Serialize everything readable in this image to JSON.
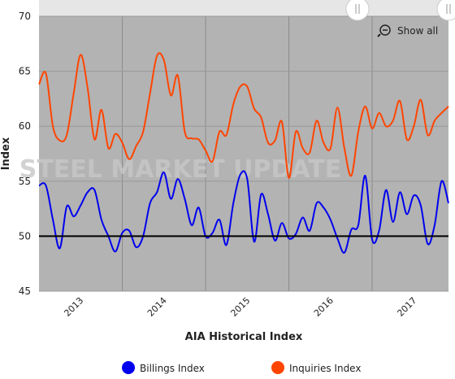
{
  "chart_data": {
    "type": "line",
    "x_axis_title": "AIA Historical Index",
    "y_axis_title": "Index",
    "watermark": "STEEL MARKET UPDATE",
    "reset_button": "Show all",
    "categories": [
      null,
      null,
      null,
      null,
      null,
      null,
      "2013",
      null,
      null,
      null,
      null,
      null,
      null,
      null,
      null,
      null,
      null,
      null,
      "2014",
      null,
      null,
      null,
      null,
      null,
      null,
      null,
      null,
      null,
      null,
      null,
      "2015",
      null,
      null,
      null,
      null,
      null,
      null,
      null,
      null,
      null,
      null,
      null,
      "2016",
      null,
      null,
      null,
      null,
      null,
      null,
      null,
      null,
      null,
      null,
      null,
      "2017",
      null,
      null,
      null,
      null,
      null
    ],
    "series": [
      {
        "name": "Billings Index",
        "color": "#0000ee",
        "values": [
          54.6,
          54.6,
          51.5,
          48.9,
          52.7,
          51.8,
          52.8,
          54,
          54.2,
          51.5,
          50,
          48.6,
          50.3,
          50.5,
          49,
          50,
          53,
          54,
          55.8,
          53.4,
          55.2,
          53.4,
          51,
          52.6,
          50,
          50.3,
          51.5,
          49.2,
          53,
          55.6,
          55.2,
          49.5,
          53.8,
          52,
          49.6,
          51.2,
          49.8,
          50.2,
          51.7,
          50.5,
          53,
          52.6,
          51.5,
          49.8,
          48.5,
          50.6,
          51,
          55.5,
          49.7,
          50.5,
          54.2,
          51.3,
          54,
          52,
          53.7,
          52.8,
          49.3,
          51,
          55,
          53
        ]
      },
      {
        "name": "Inquiries Index",
        "color": "#ff4500",
        "values": [
          63.8,
          64.8,
          60,
          58.7,
          59.2,
          63,
          66.5,
          63.5,
          58.8,
          61.5,
          58,
          59.3,
          58.5,
          57,
          58.2,
          59.5,
          63,
          66.4,
          66,
          62.8,
          64.6,
          59.5,
          58.9,
          58.8,
          57.8,
          56.8,
          59.5,
          59.2,
          62,
          63.6,
          63.6,
          61.6,
          60.8,
          58.5,
          58.7,
          60.4,
          55.3,
          59.5,
          58,
          57.6,
          60.5,
          58.5,
          58,
          61.7,
          58,
          55.5,
          59.5,
          61.8,
          59.8,
          61.2,
          60,
          60.5,
          62.3,
          58.8,
          60,
          62.4,
          59.2,
          60.5,
          61.2,
          61.8
        ]
      }
    ],
    "ylim": [
      45,
      70
    ],
    "yticks": [
      45,
      50,
      55,
      60,
      65,
      70
    ],
    "reference_line": 50,
    "grid": true,
    "legend": "bottom"
  }
}
